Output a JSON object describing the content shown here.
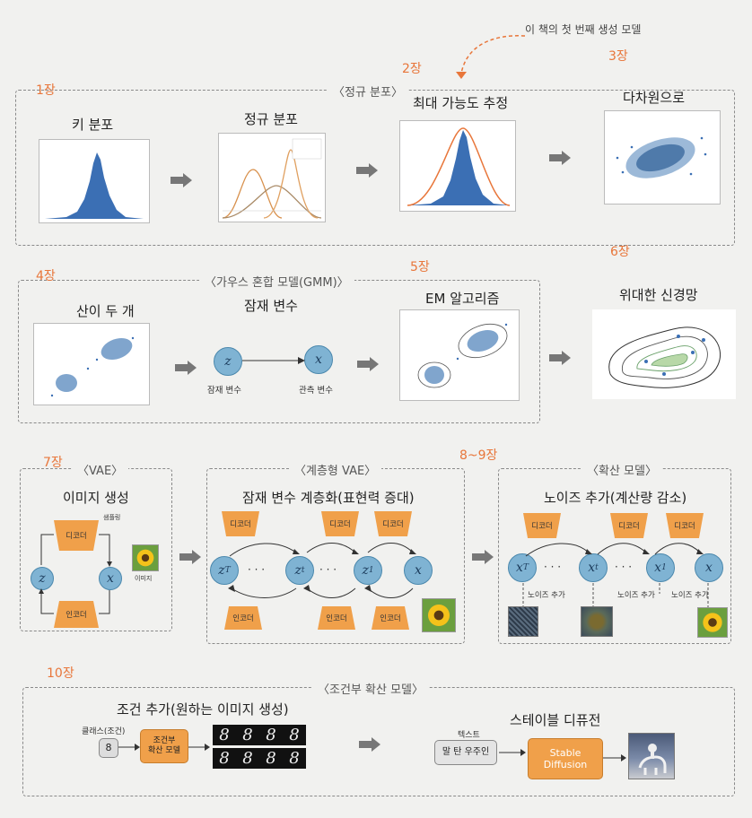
{
  "top_note": "이 책의 첫 번째 생성 모델",
  "chapters": {
    "c1": "1장",
    "c2": "2장",
    "c3": "3장",
    "c4": "4장",
    "c5": "5장",
    "c6": "6장",
    "c7": "7장",
    "c89": "8~9장",
    "c10": "10장"
  },
  "row1": {
    "group_label": "〈정규 분포〉",
    "t1": "키 분포",
    "t2": "정규 분포",
    "t3": "최대 가능도 추정",
    "t4": "다차원으로"
  },
  "row2": {
    "group_label": "〈가우스 혼합 모델(GMM)〉",
    "t1": "산이 두 개",
    "t2": "잠재 변수",
    "t3": "EM 알고리즘",
    "t4": "위대한 신경망",
    "node_z": "z",
    "node_x": "x",
    "lbl_z": "잠재 변수",
    "lbl_x": "관측 변수"
  },
  "row3": {
    "vae_label": "〈VAE〉",
    "vae_title": "이미지 생성",
    "vae_sample": "샘플링",
    "vae_decoder": "디코더",
    "vae_encoder": "인코더",
    "vae_image": "이미지",
    "hvae_label": "〈계층형 VAE〉",
    "hvae_title": "잠재 변수 계층화(표현력 증대)",
    "diff_label": "〈확산 모델〉",
    "diff_title": "노이즈 추가(계산량 감소)",
    "decoder": "디코더",
    "encoder": "인코더",
    "noise_add": "노이즈 추가",
    "zT": "z",
    "zT_sub": "T",
    "zt": "z",
    "zt_sub": "t",
    "z1": "z",
    "z1_sub": "1",
    "x": "x",
    "xT": "x",
    "xT_sub": "T",
    "xt": "x",
    "xt_sub": "t",
    "x1": "x",
    "x1_sub": "1",
    "dots": "· · ·"
  },
  "row4": {
    "group_label": "〈조건부 확산 모델〉",
    "t1": "조건 추가(원하는 이미지 생성)",
    "class_label": "클래스(조건)",
    "class_value": "8",
    "cond_model": "조건부\n확산 모델",
    "digits": [
      "8",
      "8",
      "8",
      "8",
      "8",
      "8",
      "8",
      "8"
    ],
    "t2": "스테이블 디퓨전",
    "text_label": "텍스트",
    "text_value": "말 탄 우주인",
    "sd_label": "Stable\nDiffusion"
  },
  "colors": {
    "accent": "#e8763a",
    "node": "#7fb3d3",
    "decoder": "#f0a04a",
    "histogram": "#3b6fb4"
  }
}
